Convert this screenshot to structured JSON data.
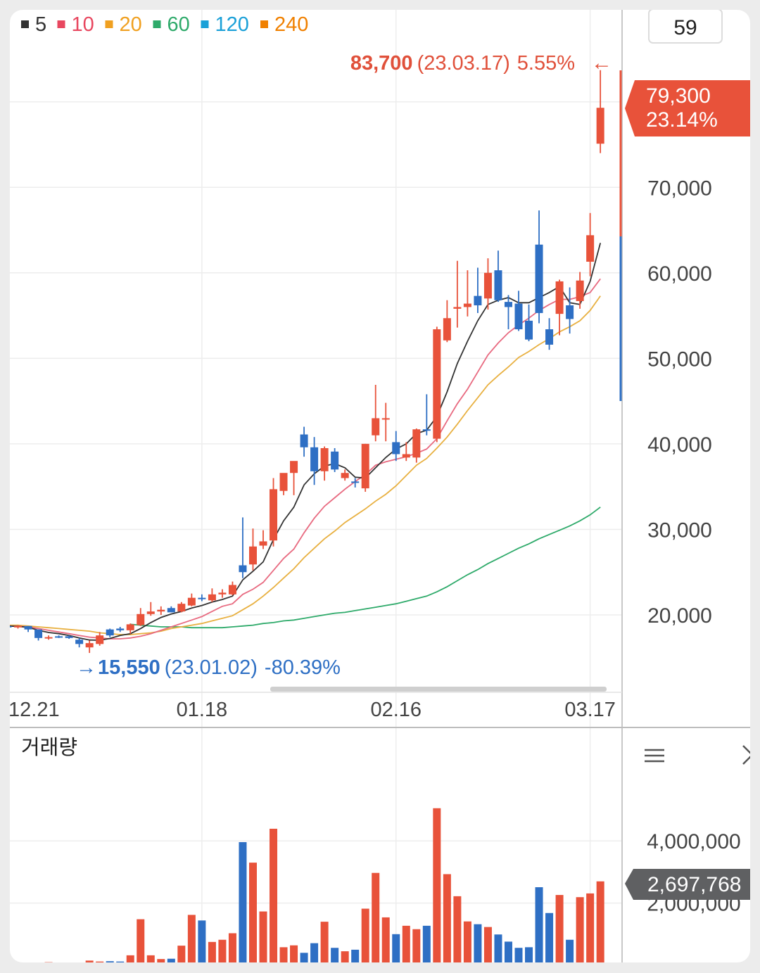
{
  "legend": [
    {
      "label": "5",
      "color": "#333333"
    },
    {
      "label": "10",
      "color": "#e8475f"
    },
    {
      "label": "20",
      "color": "#f0a020"
    },
    {
      "label": "60",
      "color": "#2eaa6a"
    },
    {
      "label": "120",
      "color": "#1aa0d8"
    },
    {
      "label": "240",
      "color": "#f08000"
    }
  ],
  "period_box": "59",
  "high_annotation": {
    "value": "83,700",
    "date": "(23.03.17)",
    "pct": "5.55%",
    "arrow": "←"
  },
  "low_annotation": {
    "arrow": "→",
    "value": "15,550",
    "date": "(23.01.02)",
    "pct": "-80.39%"
  },
  "current": {
    "price": "79,300",
    "pct": "23.14%"
  },
  "volume": {
    "title": "거래량",
    "current": "2,697,768"
  },
  "colors": {
    "up": "#e8523a",
    "down": "#2e6fc4",
    "ma5": "#333333",
    "ma10": "#e86a80",
    "ma20": "#e8b040",
    "ma60": "#2eaa6a"
  },
  "chart_data": {
    "type": "candlestick",
    "price_axis": {
      "ticks": [
        20000,
        30000,
        40000,
        50000,
        60000,
        70000
      ],
      "labels": [
        "20,000",
        "30,000",
        "40,000",
        "50,000",
        "60,000",
        "70,000"
      ]
    },
    "x_ticks": [
      {
        "index": 0,
        "label": "12.21"
      },
      {
        "index": 19,
        "label": "01.18"
      },
      {
        "index": 38,
        "label": "02.16"
      },
      {
        "index": 57,
        "label": "03.17"
      }
    ],
    "volume_axis": {
      "ticks": [
        2000000,
        4000000
      ],
      "labels": [
        "2,000,000",
        "4,000,000"
      ]
    },
    "candles": [
      [
        18700,
        18800,
        18500,
        18600,
        -1,
        50000
      ],
      [
        18600,
        18800,
        18400,
        18700,
        1,
        60000
      ],
      [
        18700,
        18700,
        18000,
        18300,
        -1,
        80000
      ],
      [
        18300,
        18300,
        17000,
        17300,
        -1,
        90000
      ],
      [
        17300,
        17600,
        17100,
        17400,
        1,
        100000
      ],
      [
        17400,
        17600,
        17300,
        17500,
        -1,
        80000
      ],
      [
        17500,
        17600,
        17200,
        17300,
        -1,
        70000
      ],
      [
        16600,
        17300,
        16200,
        17100,
        -1,
        90000
      ],
      [
        16200,
        17000,
        15550,
        16700,
        1,
        150000
      ],
      [
        16600,
        18000,
        16400,
        17600,
        1,
        120000
      ],
      [
        17600,
        18400,
        17400,
        18300,
        -1,
        130000
      ],
      [
        18400,
        18600,
        18000,
        18200,
        -1,
        120000
      ],
      [
        18200,
        19000,
        17800,
        18900,
        1,
        320000
      ],
      [
        18800,
        20800,
        18700,
        20100,
        1,
        1480000
      ],
      [
        20100,
        21500,
        19900,
        20400,
        1,
        320000
      ],
      [
        20400,
        21000,
        20000,
        20600,
        1,
        200000
      ],
      [
        20800,
        21000,
        20300,
        20300,
        -1,
        210000
      ],
      [
        20400,
        21500,
        20300,
        21300,
        1,
        630000
      ],
      [
        21100,
        22500,
        21000,
        22000,
        1,
        1620000
      ],
      [
        22000,
        22400,
        21600,
        21900,
        -1,
        1440000
      ],
      [
        21700,
        23100,
        21500,
        22400,
        1,
        750000
      ],
      [
        22400,
        23000,
        22000,
        22600,
        1,
        820000
      ],
      [
        22400,
        23900,
        22300,
        23500,
        1,
        1030000
      ],
      [
        25000,
        31400,
        24300,
        25800,
        -1,
        3960000
      ],
      [
        25900,
        30100,
        25200,
        28000,
        1,
        3300000
      ],
      [
        28100,
        29900,
        27700,
        28600,
        1,
        1730000
      ],
      [
        28700,
        36000,
        28000,
        34700,
        1,
        4390000
      ],
      [
        34500,
        36500,
        34000,
        36600,
        1,
        580000
      ],
      [
        36600,
        37800,
        34000,
        38000,
        1,
        640000
      ],
      [
        41100,
        42000,
        38500,
        39600,
        -1,
        400000
      ],
      [
        39600,
        40800,
        35200,
        36800,
        -1,
        710000
      ],
      [
        36800,
        39700,
        35700,
        39500,
        1,
        1400000
      ],
      [
        39100,
        39500,
        36700,
        37000,
        -1,
        560000
      ],
      [
        36600,
        37000,
        35700,
        36000,
        1,
        450000
      ],
      [
        35500,
        36000,
        34900,
        35600,
        -1,
        500000
      ],
      [
        34800,
        40000,
        34400,
        40000,
        1,
        1820000
      ],
      [
        41000,
        46900,
        40300,
        43000,
        1,
        2970000
      ],
      [
        43000,
        44800,
        40300,
        43000,
        1,
        1540000
      ],
      [
        40200,
        41500,
        38000,
        38800,
        -1,
        1000000
      ],
      [
        38800,
        40200,
        38000,
        38400,
        1,
        1270000
      ],
      [
        38400,
        41800,
        37800,
        41700,
        1,
        1160000
      ],
      [
        41700,
        45800,
        41000,
        41700,
        -1,
        1270000
      ],
      [
        40600,
        53700,
        40200,
        53400,
        1,
        5050000
      ],
      [
        52100,
        56800,
        51900,
        54700,
        1,
        2930000
      ],
      [
        55800,
        61400,
        53600,
        56000,
        1,
        2220000
      ],
      [
        56000,
        60300,
        54900,
        56400,
        1,
        1410000
      ],
      [
        57300,
        60600,
        55300,
        56200,
        -1,
        1320000
      ],
      [
        57000,
        61700,
        55700,
        60000,
        1,
        1230000
      ],
      [
        60300,
        62600,
        56600,
        56800,
        -1,
        990000
      ],
      [
        56600,
        57400,
        53400,
        56000,
        -1,
        760000
      ],
      [
        56400,
        57900,
        53200,
        53400,
        -1,
        560000
      ],
      [
        52200,
        56300,
        52000,
        54400,
        -1,
        580000
      ],
      [
        55300,
        67300,
        54100,
        63300,
        -1,
        2510000
      ],
      [
        53400,
        54700,
        51000,
        51600,
        -1,
        1680000
      ],
      [
        55200,
        59200,
        52700,
        59000,
        1,
        2260000
      ],
      [
        56200,
        58300,
        52900,
        54600,
        -1,
        820000
      ],
      [
        59100,
        60100,
        55800,
        56700,
        1,
        2190000
      ],
      [
        64400,
        67000,
        59600,
        61300,
        1,
        2310000
      ],
      [
        79300,
        83700,
        74000,
        75100,
        1,
        2697768
      ]
    ],
    "ma5": [
      18700,
      18650,
      18550,
      18200,
      17940,
      17800,
      17600,
      17300,
      17060,
      17040,
      17240,
      17600,
      17800,
      18400,
      19100,
      19700,
      20100,
      20400,
      20800,
      21100,
      21500,
      21800,
      22200,
      24100,
      25100,
      26200,
      28800,
      31000,
      32600,
      35200,
      36500,
      37400,
      37700,
      37200,
      36100,
      36000,
      37200,
      38400,
      39400,
      40000,
      41200,
      41600,
      43200,
      46100,
      49400,
      52000,
      54400,
      56300,
      56800,
      57100,
      56500,
      56500,
      57100,
      57700,
      58400,
      56500,
      56300,
      59000,
      63500
    ],
    "ma10": [
      18700,
      18680,
      18600,
      18400,
      18200,
      18000,
      17800,
      17600,
      17400,
      17300,
      17200,
      17200,
      17300,
      17500,
      17800,
      18200,
      18600,
      19000,
      19400,
      19800,
      20400,
      21000,
      21300,
      22400,
      23000,
      23800,
      25200,
      26600,
      27700,
      29600,
      31300,
      32700,
      33700,
      34700,
      35600,
      36400,
      37500,
      37900,
      38200,
      38500,
      38900,
      39400,
      40600,
      42700,
      44700,
      46400,
      48400,
      50400,
      51800,
      53000,
      53900,
      54700,
      55600,
      56300,
      56900,
      56900,
      57200,
      57700,
      59300
    ],
    "ma20": [
      18800,
      18800,
      18700,
      18600,
      18500,
      18400,
      18300,
      18200,
      18100,
      17900,
      17800,
      17700,
      17700,
      17800,
      17900,
      18100,
      18400,
      18600,
      18800,
      19000,
      19300,
      19600,
      19900,
      20600,
      21300,
      22200,
      23200,
      24300,
      25400,
      26700,
      27800,
      28900,
      29800,
      30800,
      31600,
      32400,
      33300,
      34100,
      35100,
      36300,
      37500,
      38300,
      39500,
      40800,
      42300,
      43900,
      45400,
      46900,
      48000,
      49000,
      50100,
      50800,
      51600,
      52300,
      53100,
      53700,
      54400,
      55600,
      57300
    ],
    "ma60": [
      null,
      null,
      null,
      null,
      null,
      null,
      null,
      null,
      null,
      null,
      null,
      null,
      18900,
      18800,
      18700,
      18600,
      18600,
      18600,
      18500,
      18500,
      18500,
      18500,
      18600,
      18700,
      18800,
      19000,
      19100,
      19300,
      19400,
      19600,
      19800,
      20000,
      20200,
      20300,
      20500,
      20700,
      20900,
      21100,
      21300,
      21600,
      21900,
      22200,
      22700,
      23300,
      24000,
      24700,
      25300,
      26000,
      26600,
      27200,
      27800,
      28300,
      28900,
      29400,
      29900,
      30400,
      31000,
      31700,
      32600
    ]
  }
}
